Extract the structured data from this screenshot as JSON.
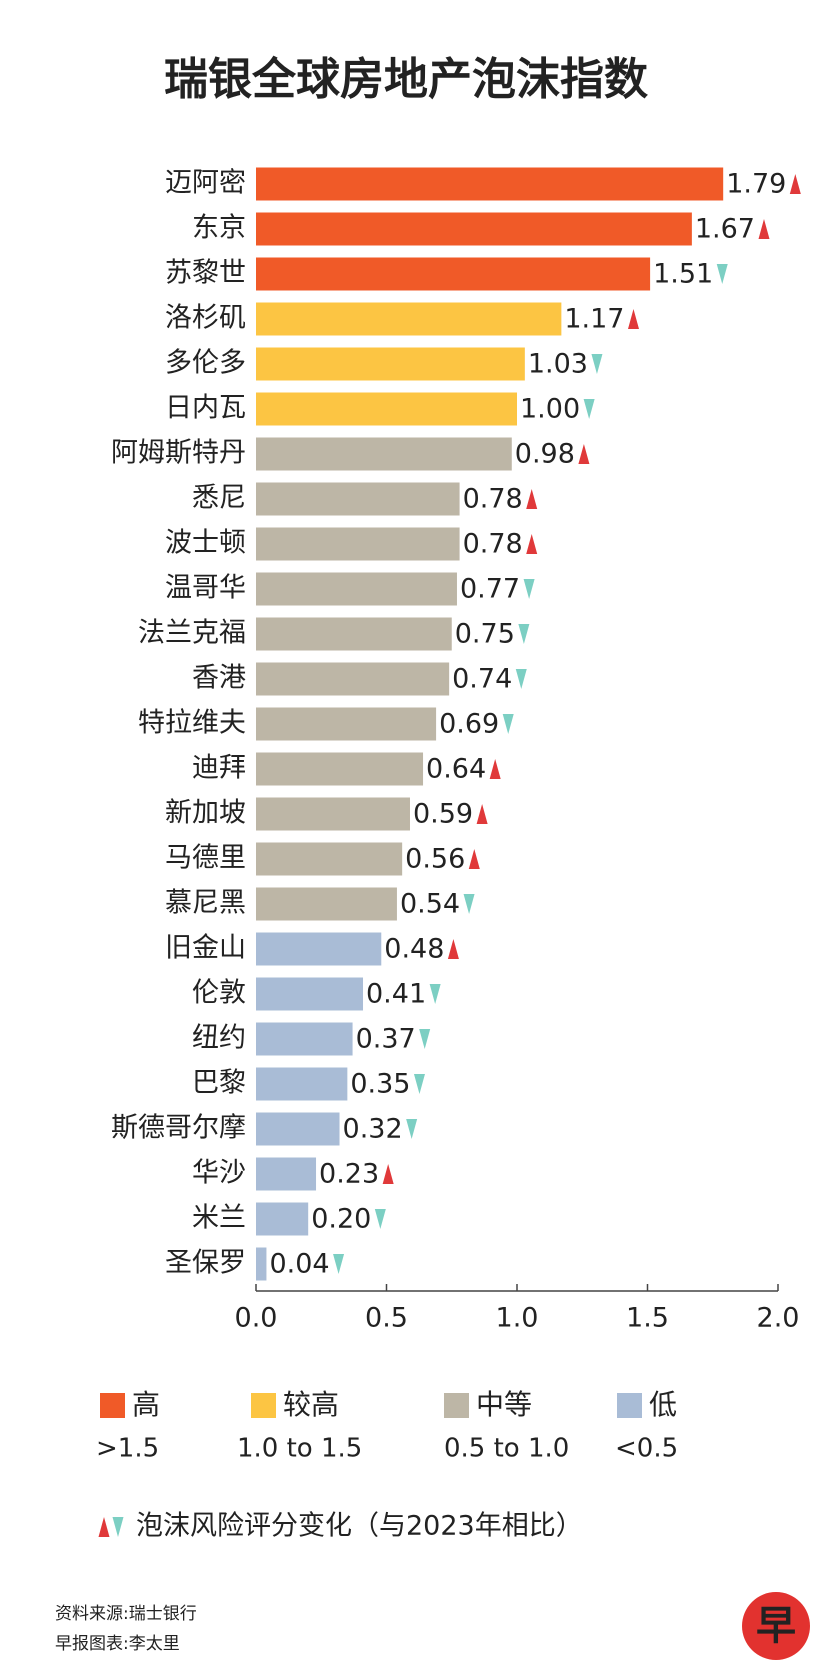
{
  "chart_data": {
    "type": "barh",
    "title": "瑞银全球房地产泡沫指数",
    "categories": [
      "迈阿密",
      "东京",
      "苏黎世",
      "洛杉矶",
      "多伦多",
      "日内瓦",
      "阿姆斯特丹",
      "悉尼",
      "波士顿",
      "温哥华",
      "法兰克福",
      "香港",
      "特拉维夫",
      "迪拜",
      "新加坡",
      "马德里",
      "慕尼黑",
      "旧金山",
      "伦敦",
      "纽约",
      "巴黎",
      "斯德哥尔摩",
      "华沙",
      "米兰",
      "圣保罗"
    ],
    "values": [
      1.79,
      1.67,
      1.51,
      1.17,
      1.03,
      1.0,
      0.98,
      0.78,
      0.78,
      0.77,
      0.75,
      0.74,
      0.69,
      0.64,
      0.59,
      0.56,
      0.54,
      0.48,
      0.41,
      0.37,
      0.35,
      0.32,
      0.23,
      0.2,
      0.04
    ],
    "value_labels": [
      "1.79",
      "1.67",
      "1.51",
      "1.17",
      "1.03",
      "1.00",
      "0.98",
      "0.78",
      "0.78",
      "0.77",
      "0.75",
      "0.74",
      "0.69",
      "0.64",
      "0.59",
      "0.56",
      "0.54",
      "0.48",
      "0.41",
      "0.37",
      "0.35",
      "0.32",
      "0.23",
      "0.20",
      "0.04"
    ],
    "groups": [
      0,
      0,
      0,
      1,
      1,
      1,
      2,
      2,
      2,
      2,
      2,
      2,
      2,
      2,
      2,
      2,
      2,
      3,
      3,
      3,
      3,
      3,
      3,
      3,
      3
    ],
    "changes": [
      "up",
      "up",
      "down",
      "up",
      "down",
      "down",
      "up",
      "up",
      "up",
      "down",
      "down",
      "down",
      "down",
      "up",
      "up",
      "up",
      "down",
      "up",
      "down",
      "down",
      "down",
      "down",
      "up",
      "down",
      "down"
    ],
    "change_colors": {
      "up": "#e0393a",
      "down": "#7ccfc3"
    },
    "highlight": {
      "index": 14,
      "color": "#d9302a"
    },
    "xlim": [
      0,
      2
    ],
    "xticks": [
      {
        "value": 0,
        "label": "0.0"
      },
      0.5,
      {
        "value": 1,
        "label": "1.0"
      },
      1.5,
      {
        "value": 2,
        "label": "2.0"
      }
    ],
    "legend": [
      {
        "name": "高",
        "range": ">1.5",
        "color": "#f05a28"
      },
      {
        "name": "较高",
        "range": "1.0 to 1.5",
        "color": "#fcc543"
      },
      {
        "name": "中等",
        "range": "0.5 to 1.0",
        "color": "#bdb6a6"
      },
      {
        "name": "低",
        "range": "<0.5",
        "color": "#a9bcd6"
      }
    ],
    "change_legend": "泡沫风险评分变化（与2023年相比）",
    "source": "资料来源:瑞士银行",
    "credit": "早报图表:李太里",
    "logo": "早"
  }
}
